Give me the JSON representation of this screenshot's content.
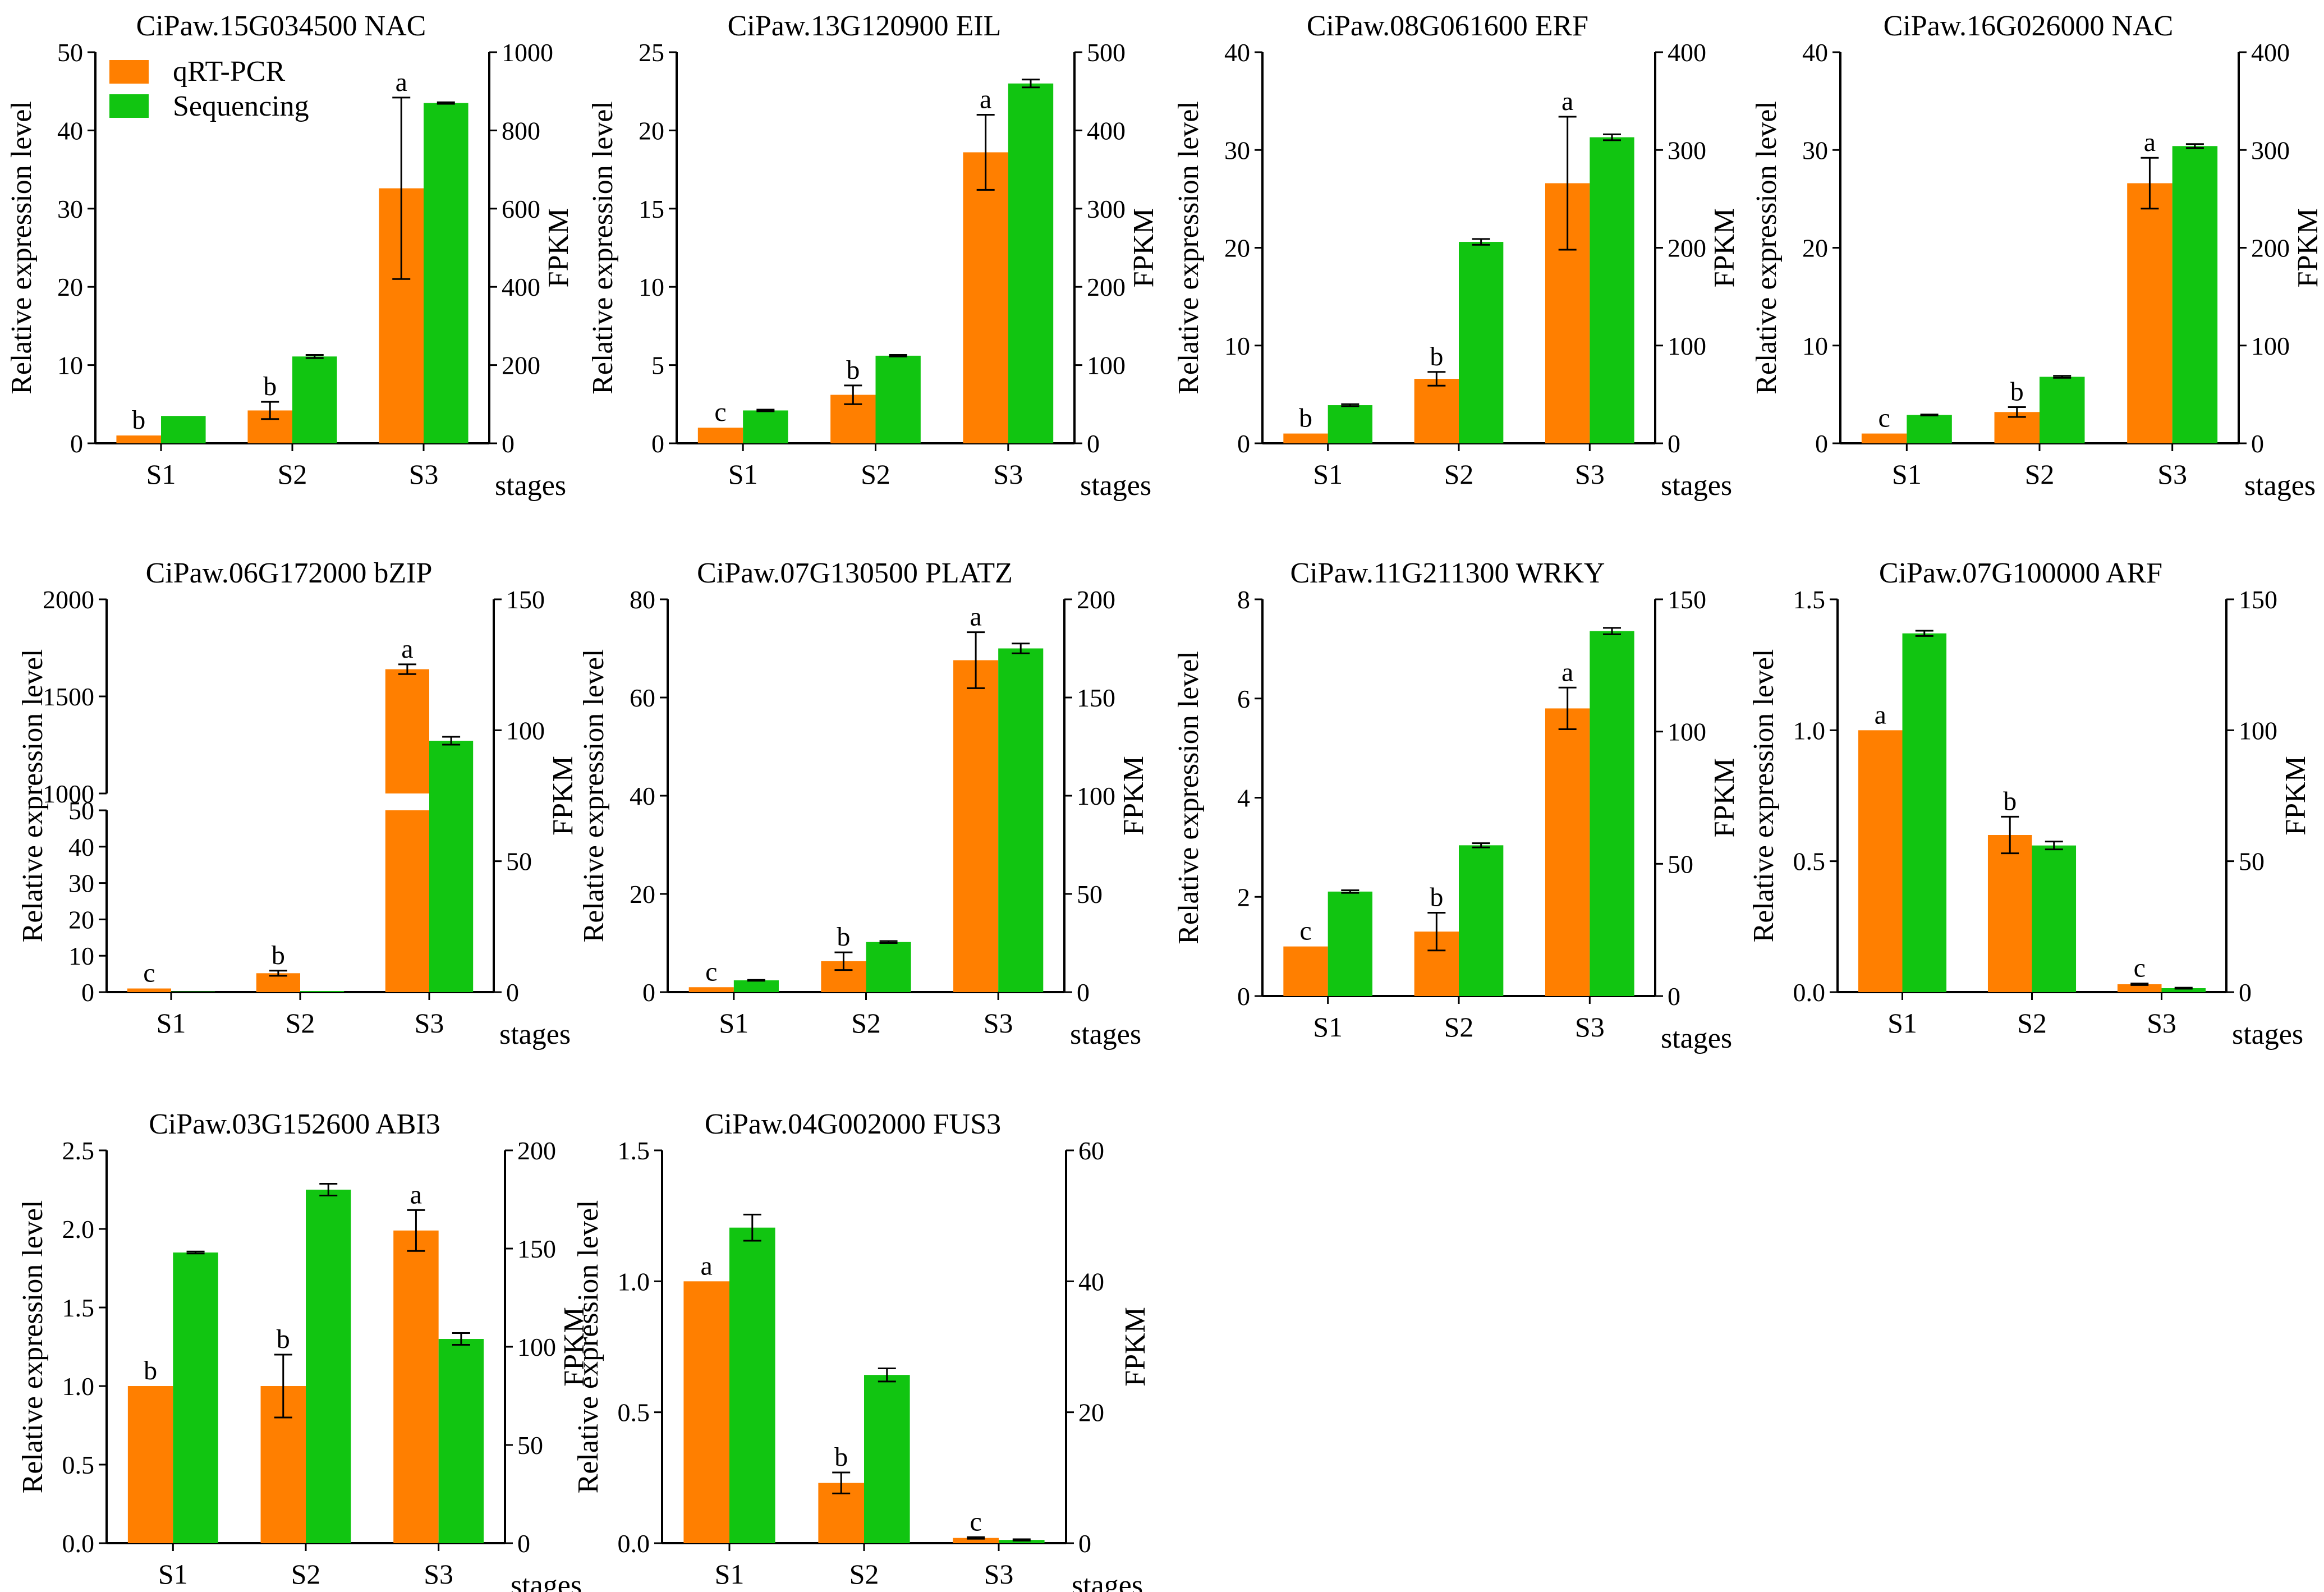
{
  "colors": {
    "qrt": "#FF7F00",
    "seq": "#11C511"
  },
  "legend": [
    "qRT-PCR",
    "Sequencing"
  ],
  "chart_data": [
    {
      "type": "bar",
      "title": "CiPaw.15G034500  NAC",
      "categories": [
        "S1",
        "S2",
        "S3"
      ],
      "xlabel": "stages",
      "ylabel": "Relative expression level",
      "ylabel2": "FPKM",
      "ylim": [
        0,
        50
      ],
      "yticks": [
        0,
        10,
        20,
        30,
        40,
        50
      ],
      "y2lim": [
        0,
        1000
      ],
      "y2ticks": [
        0,
        200,
        400,
        600,
        800,
        1000
      ],
      "series": [
        {
          "name": "qRT-PCR",
          "axis": "left",
          "values": [
            1,
            4.2,
            32.6
          ],
          "errors": [
            0,
            1.1,
            11.6
          ],
          "letters": [
            "b",
            "b",
            "a"
          ]
        },
        {
          "name": "Sequencing",
          "axis": "right",
          "values": [
            70,
            222,
            870
          ],
          "errors": [
            0,
            4,
            2
          ]
        }
      ]
    },
    {
      "type": "bar",
      "title": "CiPaw.13G120900  EIL",
      "categories": [
        "S1",
        "S2",
        "S3"
      ],
      "xlabel": "stages",
      "ylabel": "Relative expression level",
      "ylabel2": "FPKM",
      "ylim": [
        0,
        25
      ],
      "yticks": [
        0,
        5,
        10,
        15,
        20,
        25
      ],
      "y2lim": [
        0,
        500
      ],
      "y2ticks": [
        0,
        100,
        200,
        300,
        400,
        500
      ],
      "series": [
        {
          "name": "qRT-PCR",
          "axis": "left",
          "values": [
            1,
            3.1,
            18.6
          ],
          "errors": [
            0,
            0.6,
            2.4
          ],
          "letters": [
            "c",
            "b",
            "a"
          ]
        },
        {
          "name": "Sequencing",
          "axis": "right",
          "values": [
            42,
            112,
            460
          ],
          "errors": [
            1,
            1,
            5
          ]
        }
      ]
    },
    {
      "type": "bar",
      "title": "CiPaw.08G061600  ERF",
      "categories": [
        "S1",
        "S2",
        "S3"
      ],
      "xlabel": "stages",
      "ylabel": "Relative expression level",
      "ylabel2": "FPKM",
      "ylim": [
        0,
        40
      ],
      "yticks": [
        0,
        10,
        20,
        30,
        40
      ],
      "y2lim": [
        0,
        400
      ],
      "y2ticks": [
        0,
        100,
        200,
        300,
        400
      ],
      "series": [
        {
          "name": "qRT-PCR",
          "axis": "left",
          "values": [
            1,
            6.6,
            26.6
          ],
          "errors": [
            0,
            0.7,
            6.8
          ],
          "letters": [
            "b",
            "b",
            "a"
          ]
        },
        {
          "name": "Sequencing",
          "axis": "right",
          "values": [
            39,
            206,
            313
          ],
          "errors": [
            1,
            3,
            3
          ]
        }
      ]
    },
    {
      "type": "bar",
      "title": "CiPaw.16G026000  NAC",
      "categories": [
        "S1",
        "S2",
        "S3"
      ],
      "xlabel": "stages",
      "ylabel": "Relative expression level",
      "ylabel2": "FPKM",
      "ylim": [
        0,
        40
      ],
      "yticks": [
        0,
        10,
        20,
        30,
        40
      ],
      "y2lim": [
        0,
        400
      ],
      "y2ticks": [
        0,
        100,
        200,
        300,
        400
      ],
      "series": [
        {
          "name": "qRT-PCR",
          "axis": "left",
          "values": [
            1,
            3.2,
            26.6
          ],
          "errors": [
            0,
            0.5,
            2.6
          ],
          "letters": [
            "c",
            "b",
            "a"
          ]
        },
        {
          "name": "Sequencing",
          "axis": "right",
          "values": [
            29,
            68,
            304
          ],
          "errors": [
            0.5,
            1,
            2
          ]
        }
      ]
    },
    {
      "type": "bar",
      "title": "CiPaw.06G172000  bZIP",
      "categories": [
        "S1",
        "S2",
        "S3"
      ],
      "xlabel": "stages",
      "ylabel": "Relative expression level",
      "ylabel2": "FPKM",
      "ylim": [
        0,
        2000
      ],
      "yticks": [
        0,
        10,
        20,
        30,
        40,
        50,
        1000,
        1500,
        2000
      ],
      "axis_break": {
        "lower": [
          0,
          50
        ],
        "upper": [
          1000,
          2000
        ]
      },
      "y2lim": [
        0,
        150
      ],
      "y2ticks": [
        0,
        50,
        100,
        150
      ],
      "series": [
        {
          "name": "qRT-PCR",
          "axis": "left",
          "values": [
            1,
            5.2,
            1640
          ],
          "errors": [
            0,
            0.7,
            25
          ],
          "letters": [
            "c",
            "b",
            "a"
          ]
        },
        {
          "name": "Sequencing",
          "axis": "right",
          "values": [
            0.2,
            0.4,
            96
          ],
          "errors": [
            0,
            0,
            1.5
          ]
        }
      ]
    },
    {
      "type": "bar",
      "title": "CiPaw.07G130500  PLATZ",
      "categories": [
        "S1",
        "S2",
        "S3"
      ],
      "xlabel": "stages",
      "ylabel": "Relative expression level",
      "ylabel2": "FPKM",
      "ylim": [
        0,
        80
      ],
      "yticks": [
        0,
        20,
        40,
        60,
        80
      ],
      "y2lim": [
        0,
        200
      ],
      "y2ticks": [
        0,
        50,
        100,
        150,
        200
      ],
      "series": [
        {
          "name": "qRT-PCR",
          "axis": "left",
          "values": [
            1,
            6.3,
            67.6
          ],
          "errors": [
            0,
            1.8,
            5.7
          ],
          "letters": [
            "c",
            "b",
            "a"
          ]
        },
        {
          "name": "Sequencing",
          "axis": "right",
          "values": [
            6,
            25.5,
            175
          ],
          "errors": [
            0.2,
            0.5,
            2.5
          ]
        }
      ]
    },
    {
      "type": "bar",
      "title": "CiPaw.11G211300  WRKY",
      "categories": [
        "S1",
        "S2",
        "S3"
      ],
      "xlabel": "stages",
      "ylabel": "Relative expression level",
      "ylabel2": "FPKM",
      "ylim": [
        0,
        8
      ],
      "yticks": [
        0,
        2,
        4,
        6,
        8
      ],
      "y2lim": [
        0,
        150
      ],
      "y2ticks": [
        0,
        50,
        100,
        150
      ],
      "series": [
        {
          "name": "qRT-PCR",
          "axis": "left",
          "values": [
            1,
            1.3,
            5.8
          ],
          "errors": [
            0,
            0.38,
            0.42
          ],
          "letters": [
            "c",
            "b",
            "a"
          ]
        },
        {
          "name": "Sequencing",
          "axis": "right",
          "values": [
            39.5,
            57,
            138
          ],
          "errors": [
            0.5,
            0.8,
            1.2
          ]
        }
      ]
    },
    {
      "type": "bar",
      "title": "CiPaw.07G100000  ARF",
      "categories": [
        "S1",
        "S2",
        "S3"
      ],
      "xlabel": "stages",
      "ylabel": "Relative expression level",
      "ylabel2": "FPKM",
      "ylim": [
        0,
        1.5
      ],
      "yticks": [
        0.0,
        0.5,
        1.0,
        1.5
      ],
      "y2lim": [
        0,
        150
      ],
      "y2ticks": [
        0,
        50,
        100,
        150
      ],
      "series": [
        {
          "name": "qRT-PCR",
          "axis": "left",
          "values": [
            1.0,
            0.6,
            0.03
          ],
          "errors": [
            0,
            0.07,
            0.003
          ],
          "letters": [
            "a",
            "b",
            "c"
          ]
        },
        {
          "name": "Sequencing",
          "axis": "right",
          "values": [
            137,
            56,
            1.5
          ],
          "errors": [
            1,
            1.5,
            0.2
          ]
        }
      ]
    },
    {
      "type": "bar",
      "title": "CiPaw.03G152600  ABI3",
      "categories": [
        "S1",
        "S2",
        "S3"
      ],
      "xlabel": "stages",
      "ylabel": "Relative expression level",
      "ylabel2": "FPKM",
      "ylim": [
        0,
        2.5
      ],
      "yticks": [
        0.0,
        0.5,
        1.0,
        1.5,
        2.0,
        2.5
      ],
      "y2lim": [
        0,
        200
      ],
      "y2ticks": [
        0,
        50,
        100,
        150,
        200
      ],
      "series": [
        {
          "name": "qRT-PCR",
          "axis": "left",
          "values": [
            1.0,
            1.0,
            1.99
          ],
          "errors": [
            0,
            0.2,
            0.13
          ],
          "letters": [
            "b",
            "b",
            "a"
          ]
        },
        {
          "name": "Sequencing",
          "axis": "right",
          "values": [
            148,
            180,
            104
          ],
          "errors": [
            0.5,
            3,
            3
          ]
        }
      ]
    },
    {
      "type": "bar",
      "title": "CiPaw.04G002000  FUS3",
      "categories": [
        "S1",
        "S2",
        "S3"
      ],
      "xlabel": "stages",
      "ylabel": "Relative expression level",
      "ylabel2": "FPKM",
      "ylim": [
        0,
        1.5
      ],
      "yticks": [
        0.0,
        0.5,
        1.0,
        1.5
      ],
      "y2lim": [
        0,
        60
      ],
      "y2ticks": [
        0,
        20,
        40,
        60
      ],
      "series": [
        {
          "name": "qRT-PCR",
          "axis": "left",
          "values": [
            1.0,
            0.23,
            0.02
          ],
          "errors": [
            0,
            0.04,
            0.003
          ],
          "letters": [
            "a",
            "b",
            "c"
          ]
        },
        {
          "name": "Sequencing",
          "axis": "right",
          "values": [
            48.2,
            25.7,
            0.5
          ],
          "errors": [
            2,
            1,
            0.1
          ]
        }
      ]
    }
  ]
}
